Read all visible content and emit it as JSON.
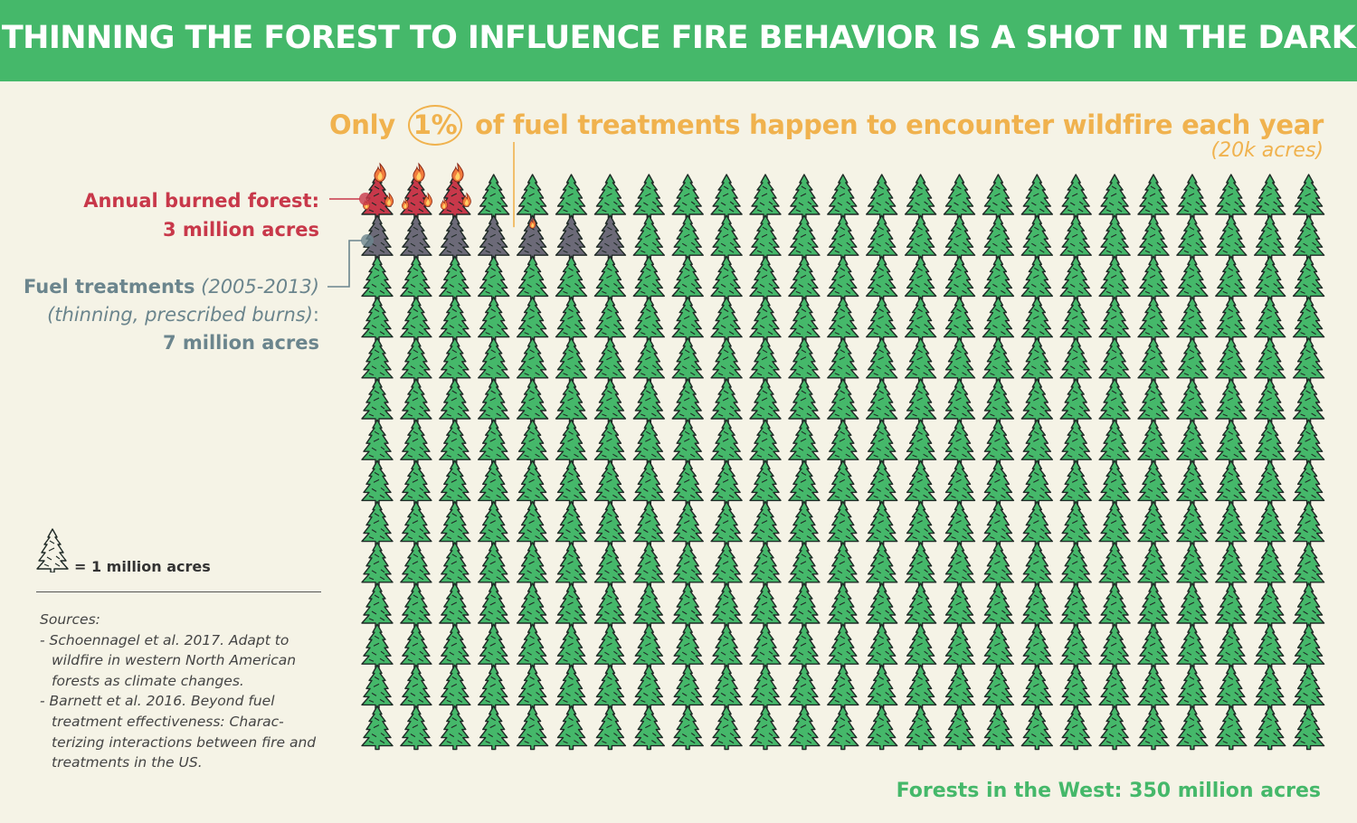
{
  "banner": {
    "title": "THINNING THE FOREST TO INFLUENCE FIRE BEHAVIOR IS A SHOT IN THE DARK"
  },
  "headline": {
    "prefix": "Only",
    "percent": "1%",
    "suffix": "of fuel treatments happen to encounter wildfire each year",
    "note": "(20k acres)"
  },
  "labels": {
    "burned_title": "Annual burned forest:",
    "burned_value": "3 million acres",
    "fuel_title": "Fuel treatments",
    "fuel_years": "(2005-2013)",
    "fuel_desc": "(thinning, prescribed burns)",
    "fuel_desc_colon": ":",
    "fuel_value": "7 million acres"
  },
  "legend": {
    "icon": "pine-tree-icon",
    "text": "= 1 million acres"
  },
  "sources": {
    "heading": "Sources:",
    "items": [
      "- Schoennagel et al. 2017. Adapt to wildfire in western North American forests as climate changes.",
      "- Barnett et al. 2016. Beyond fuel treatment effectiveness: Charac-terizing interactions between fire and treatments in the US."
    ]
  },
  "footer": {
    "text": "Forests in the West: 350 million acres"
  },
  "colors": {
    "banner": "#45b86a",
    "tree_green": "#45b86a",
    "burned_red": "#c8384a",
    "fuel_gray": "#6c6a78",
    "fire_orange": "#f07a3c",
    "accent_orange": "#f0b24e",
    "fuel_label": "#6b858d",
    "background": "#f5f3e6"
  },
  "chart_data": {
    "type": "pictogram",
    "unit": "1 million acres",
    "total_units": 350,
    "columns": 25,
    "rows": 14,
    "groups": [
      {
        "name": "Annual burned forest",
        "units": 3,
        "color": "#c8384a",
        "style": "burning"
      },
      {
        "name": "Fuel treatments",
        "units": 7,
        "color": "#6c6a78",
        "style": "gray",
        "fire_overlap_percent": 1
      },
      {
        "name": "Forests in the West",
        "units": 340,
        "color": "#45b86a",
        "style": "green"
      }
    ]
  }
}
